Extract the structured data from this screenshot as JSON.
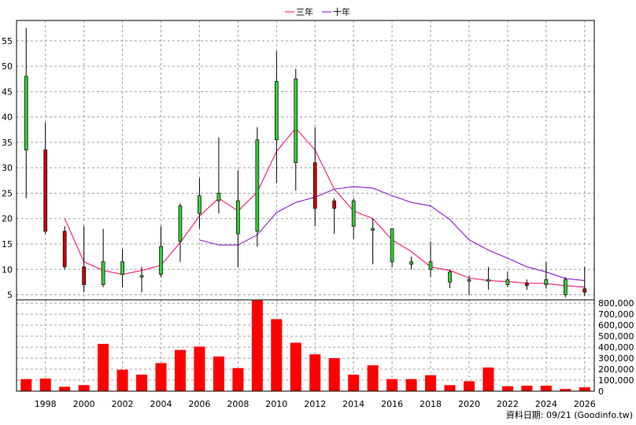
{
  "legend": {
    "ma3_label": "三年",
    "ma10_label": "十年",
    "ma3_color": "#ff0066",
    "ma10_color": "#8800cc"
  },
  "footer": {
    "source_text": "資料日期: 09/21  (Goodinfo.tw)"
  },
  "chart_data": [
    {
      "type": "candlestick",
      "title": "",
      "x": [
        1997,
        1998,
        1999,
        2000,
        2001,
        2002,
        2003,
        2004,
        2005,
        2006,
        2007,
        2008,
        2009,
        2010,
        2011,
        2012,
        2013,
        2014,
        2015,
        2016,
        2017,
        2018,
        2019,
        2020,
        2021,
        2022,
        2023,
        2024,
        2025,
        2026
      ],
      "open": [
        33.5,
        33.5,
        17.5,
        10.5,
        7.0,
        9.0,
        8.5,
        9.0,
        15.5,
        21.0,
        23.5,
        17.0,
        17.5,
        35.5,
        31.0,
        31.0,
        23.5,
        18.5,
        18.0,
        11.5,
        11.0,
        10.0,
        7.5,
        7.8,
        7.7,
        7.0,
        7.3,
        7.0,
        5.0,
        6.2
      ],
      "high": [
        57.5,
        39.0,
        18.5,
        18.5,
        18.0,
        14.0,
        10.5,
        18.5,
        23.0,
        28.0,
        36.0,
        29.5,
        38.0,
        53.0,
        49.5,
        38.0,
        24.0,
        24.0,
        20.0,
        17.5,
        12.5,
        15.5,
        10.0,
        8.8,
        10.5,
        9.5,
        8.0,
        11.5,
        8.5,
        10.5
      ],
      "low": [
        24.0,
        17.0,
        10.0,
        5.5,
        6.5,
        6.5,
        5.5,
        8.5,
        11.5,
        18.0,
        21.0,
        10.5,
        14.5,
        27.0,
        25.5,
        18.5,
        17.0,
        16.0,
        11.0,
        10.5,
        10.0,
        8.5,
        6.3,
        5.0,
        6.0,
        6.5,
        6.0,
        6.2,
        4.5,
        4.8
      ],
      "close": [
        48.0,
        17.5,
        10.5,
        7.0,
        11.5,
        11.5,
        8.8,
        14.5,
        22.5,
        24.5,
        25.0,
        23.5,
        35.5,
        47.0,
        47.5,
        22.0,
        22.0,
        23.5,
        18.0,
        18.0,
        11.5,
        11.5,
        9.5,
        8.0,
        8.0,
        8.0,
        6.8,
        8.0,
        8.0,
        5.5
      ],
      "series": [
        {
          "name": "三年",
          "x": [
            1999,
            2000,
            2001,
            2002,
            2003,
            2004,
            2005,
            2006,
            2007,
            2008,
            2009,
            2010,
            2011,
            2012,
            2013,
            2014,
            2015,
            2016,
            2017,
            2018,
            2019,
            2020,
            2021,
            2022,
            2023,
            2024,
            2025,
            2026
          ],
          "values": [
            20.0,
            11.5,
            9.8,
            9.0,
            9.8,
            10.8,
            15.3,
            20.5,
            24.0,
            21.5,
            25.2,
            33.2,
            37.8,
            33.5,
            25.8,
            21.5,
            20.0,
            15.8,
            13.5,
            10.5,
            9.8,
            8.3,
            7.8,
            7.6,
            7.3,
            7.2,
            6.8,
            6.5
          ]
        },
        {
          "name": "十年",
          "x": [
            2006,
            2007,
            2008,
            2009,
            2010,
            2011,
            2012,
            2013,
            2014,
            2015,
            2016,
            2017,
            2018,
            2019,
            2020,
            2021,
            2022,
            2023,
            2024,
            2025,
            2026
          ],
          "values": [
            15.8,
            14.8,
            14.8,
            16.8,
            21.2,
            23.2,
            24.2,
            25.8,
            26.3,
            26.0,
            24.5,
            23.2,
            22.5,
            19.8,
            15.8,
            13.8,
            12.2,
            10.5,
            9.5,
            8.2,
            7.8
          ]
        }
      ],
      "xlim": [
        1996.5,
        2026.5
      ],
      "ylim": [
        4,
        59
      ],
      "yticks": [
        5,
        10,
        15,
        20,
        25,
        30,
        35,
        40,
        45,
        50,
        55
      ],
      "xticks": [
        1998,
        2000,
        2002,
        2004,
        2006,
        2008,
        2010,
        2012,
        2014,
        2016,
        2018,
        2020,
        2022,
        2024,
        2026
      ],
      "up_color": "#33cc33",
      "down_color": "#cc0000",
      "grid": true,
      "legend_position": "top-center"
    },
    {
      "type": "bar",
      "title": "",
      "x": [
        1997,
        1998,
        1999,
        2000,
        2001,
        2002,
        2003,
        2004,
        2005,
        2006,
        2007,
        2008,
        2009,
        2010,
        2011,
        2012,
        2013,
        2014,
        2015,
        2016,
        2017,
        2018,
        2019,
        2020,
        2021,
        2022,
        2023,
        2024,
        2025,
        2026
      ],
      "values": [
        110000,
        115000,
        40000,
        55000,
        430000,
        195000,
        150000,
        255000,
        375000,
        405000,
        315000,
        210000,
        825000,
        655000,
        440000,
        335000,
        300000,
        150000,
        235000,
        110000,
        110000,
        145000,
        55000,
        90000,
        215000,
        45000,
        50000,
        50000,
        20000,
        35000
      ],
      "ylim": [
        0,
        830000
      ],
      "yticks": [
        0,
        100000,
        200000,
        300000,
        400000,
        500000,
        600000,
        700000,
        800000
      ],
      "ytick_labels": [
        "0",
        "100,000",
        "200,000",
        "300,000",
        "400,000",
        "500,000",
        "600,000",
        "700,000",
        "800,000"
      ],
      "color": "#ff0000",
      "grid": true
    }
  ]
}
